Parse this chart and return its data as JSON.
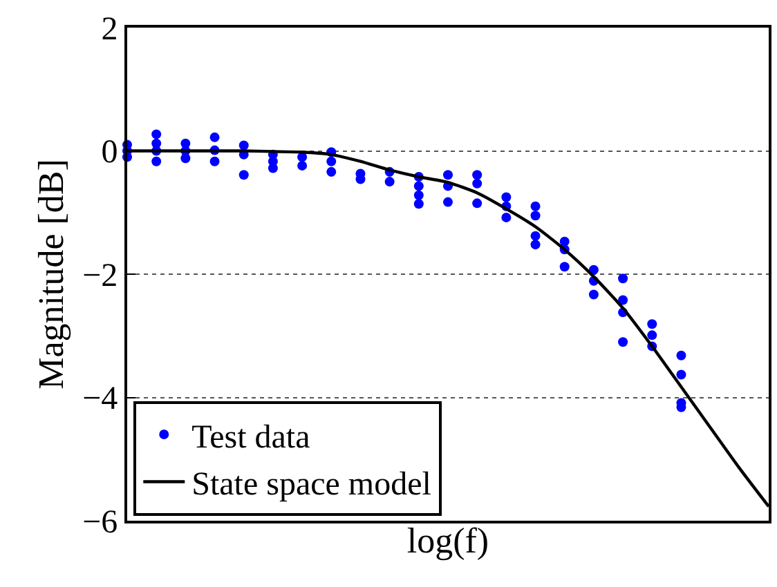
{
  "chart_data": {
    "type": "scatter",
    "xlabel": "log(f)",
    "ylabel": "Magnitude [dB]",
    "categories": [
      null,
      null,
      null,
      null,
      null,
      null,
      null,
      null,
      null,
      null,
      null,
      null,
      null,
      null,
      null,
      null,
      null,
      null,
      null,
      null,
      null,
      null,
      null
    ],
    "ylim": [
      -6,
      2
    ],
    "yticks": [
      {
        "value": -6,
        "label": "−6"
      },
      {
        "value": -4,
        "label": "−4"
      },
      {
        "value": -2,
        "label": "−2"
      },
      0,
      2
    ],
    "grid": "y",
    "legend": "bottom left",
    "tick_labels": "y",
    "marker": "circle",
    "series": [
      {
        "name": "Test data",
        "color": "#0000ff",
        "values": [
          0.1,
          0.27,
          0.12,
          0.22,
          0.09,
          -0.06,
          -0.1,
          -0.02,
          -0.37,
          -0.34,
          -0.42,
          -0.39,
          -0.39,
          -0.75,
          -0.9,
          -1.47,
          -1.93,
          -2.07,
          -2.81,
          -3.32,
          null,
          null,
          null
        ]
      },
      {
        "color": "#0000ff",
        "values": [
          0,
          0.12,
          0,
          0.01,
          -0.06,
          -0.17,
          -0.24,
          -0.17,
          -0.46,
          -0.5,
          -0.57,
          -0.57,
          -0.53,
          -0.9,
          -1.05,
          -1.6,
          -2.11,
          -2.42,
          -2.99,
          -3.63,
          null,
          null,
          null
        ]
      },
      {
        "color": "#0000ff",
        "values": [
          -0.1,
          0,
          -0.12,
          -0.17,
          -0.39,
          -0.28,
          null,
          -0.34,
          null,
          null,
          -0.72,
          -0.83,
          -0.85,
          -1.08,
          -1.38,
          -1.88,
          -2.33,
          -2.62,
          -3.17,
          -4.09,
          null,
          null,
          null
        ]
      },
      {
        "color": "#0000ff",
        "values": [
          null,
          -0.17,
          null,
          null,
          null,
          null,
          null,
          null,
          null,
          null,
          -0.86,
          null,
          null,
          null,
          -1.52,
          null,
          null,
          -3.1,
          null,
          -4.16,
          null,
          null,
          null
        ]
      },
      {
        "type": "line",
        "name": "State space model",
        "color": "#000000",
        "line_style": "solid",
        "marker": "none",
        "values": [
          0,
          0,
          0,
          0,
          0,
          -0.01,
          -0.02,
          -0.06,
          -0.17,
          -0.31,
          -0.42,
          -0.51,
          -0.68,
          -0.94,
          -1.23,
          -1.6,
          -2.04,
          -2.55,
          -3.17,
          -3.83,
          -4.49,
          -5.15,
          -5.77
        ]
      }
    ]
  }
}
